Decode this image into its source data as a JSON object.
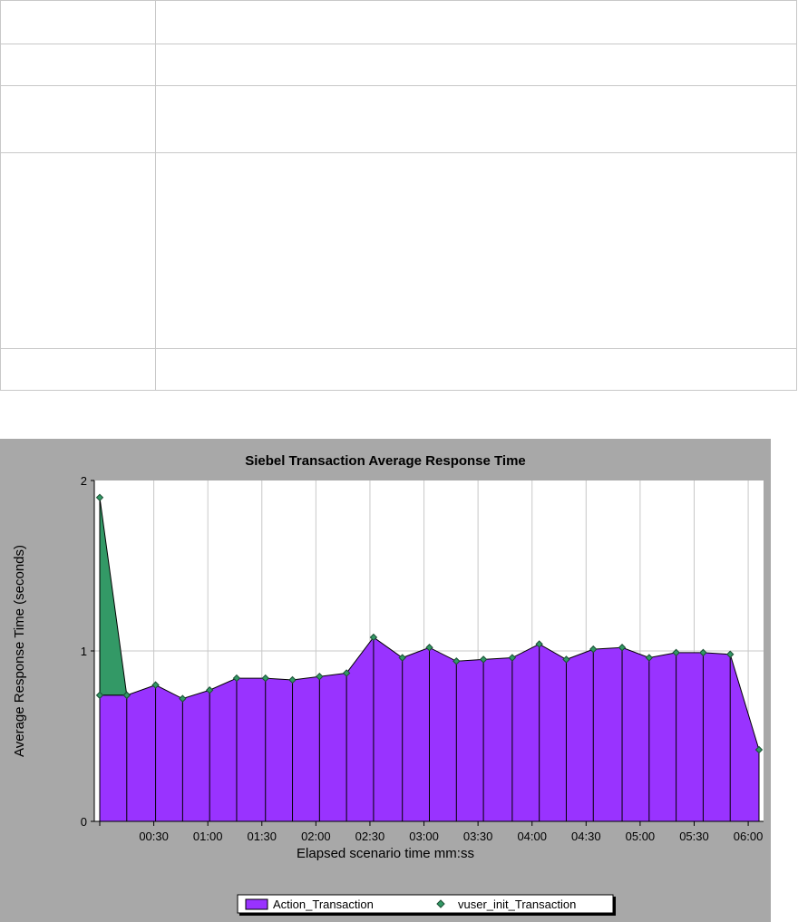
{
  "chart_data": {
    "type": "area",
    "title": "Siebel Transaction Average Response Time",
    "xlabel": "Elapsed scenario time mm:ss",
    "ylabel": "Average Response Time (seconds)",
    "ylim": [
      0,
      2
    ],
    "yticks": [
      "0",
      "1",
      "2"
    ],
    "xtick_labels": [
      "00:30",
      "01:00",
      "01:30",
      "02:00",
      "02:30",
      "03:00",
      "03:30",
      "04:00",
      "04:30",
      "05:00",
      "05:30",
      "06:00"
    ],
    "xtick_values": [
      30,
      60,
      90,
      120,
      150,
      180,
      210,
      240,
      270,
      300,
      330,
      360
    ],
    "xlim": [
      0,
      366
    ],
    "grid": true,
    "legend_position": "bottom",
    "series": [
      {
        "name": "Action_Transaction",
        "color": "#9933ff",
        "x": [
          0,
          15,
          31,
          46,
          61,
          76,
          92,
          107,
          122,
          137,
          152,
          168,
          183,
          198,
          213,
          229,
          244,
          259,
          274,
          290,
          305,
          320,
          335,
          350,
          366
        ],
        "values": [
          0.74,
          0.74,
          0.8,
          0.72,
          0.77,
          0.84,
          0.84,
          0.83,
          0.85,
          0.87,
          1.08,
          0.96,
          1.02,
          0.94,
          0.95,
          0.96,
          1.04,
          0.95,
          1.01,
          1.02,
          0.96,
          0.99,
          0.99,
          0.98,
          0.42
        ]
      },
      {
        "name": "vuser_init_Transaction",
        "color": "#339966",
        "x": [
          0,
          15
        ],
        "values": [
          1.9,
          0.74
        ]
      }
    ]
  }
}
